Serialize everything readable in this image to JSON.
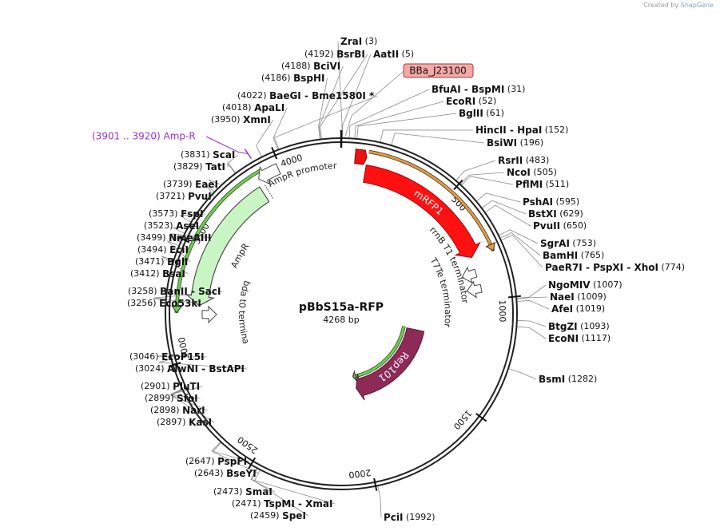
{
  "credit": {
    "prefix": "Created by",
    "brand": "SnapGene"
  },
  "plasmid": {
    "name": "pBbS15a-RFP",
    "length_label": "4268 bp",
    "length": 4268
  },
  "ticks": [
    {
      "bp": 500,
      "label": "500"
    },
    {
      "bp": 1000,
      "label": "1000"
    },
    {
      "bp": 1500,
      "label": "1500"
    },
    {
      "bp": 2000,
      "label": "2000"
    },
    {
      "bp": 2500,
      "label": "2500"
    },
    {
      "bp": 3000,
      "label": "3000"
    },
    {
      "bp": 3500,
      "label": "3500"
    },
    {
      "bp": 4000,
      "label": "4000"
    }
  ],
  "enzymes": [
    {
      "id": "zrai",
      "bp": 3,
      "names": [
        "ZraI"
      ],
      "pos": "(3)",
      "lx": 426,
      "ly": 52,
      "side": "r"
    },
    {
      "id": "aatii",
      "bp": 5,
      "names": [
        "AatII"
      ],
      "pos": "(5)",
      "lx": 467,
      "ly": 68,
      "side": "r"
    },
    {
      "id": "bfuai",
      "bp": 31,
      "names": [
        "BfuAI",
        "BspMI"
      ],
      "pos": "(31)",
      "lx": 540,
      "ly": 112,
      "side": "r"
    },
    {
      "id": "ecori",
      "bp": 52,
      "names": [
        "EcoRI"
      ],
      "pos": "(52)",
      "lx": 558,
      "ly": 127,
      "side": "r"
    },
    {
      "id": "bglii",
      "bp": 61,
      "names": [
        "BglII"
      ],
      "pos": "(61)",
      "lx": 574,
      "ly": 142,
      "side": "r"
    },
    {
      "id": "hincii",
      "bp": 152,
      "names": [
        "HincII",
        "HpaI"
      ],
      "pos": "(152)",
      "lx": 595,
      "ly": 163,
      "side": "r"
    },
    {
      "id": "bsiwi",
      "bp": 196,
      "names": [
        "BsiWI"
      ],
      "pos": "(196)",
      "lx": 609,
      "ly": 179,
      "side": "r"
    },
    {
      "id": "rsrii",
      "bp": 483,
      "names": [
        "RsrII"
      ],
      "pos": "(483)",
      "lx": 623,
      "ly": 201,
      "side": "r"
    },
    {
      "id": "ncoi",
      "bp": 505,
      "names": [
        "NcoI"
      ],
      "pos": "(505)",
      "lx": 634,
      "ly": 216,
      "side": "r"
    },
    {
      "id": "pflmi",
      "bp": 511,
      "names": [
        "PflMI"
      ],
      "pos": "(511)",
      "lx": 645,
      "ly": 231,
      "side": "r"
    },
    {
      "id": "pshai",
      "bp": 595,
      "names": [
        "PshAI"
      ],
      "pos": "(595)",
      "lx": 654,
      "ly": 253,
      "side": "r"
    },
    {
      "id": "bstxi",
      "bp": 629,
      "names": [
        "BstXI"
      ],
      "pos": "(629)",
      "lx": 661,
      "ly": 268,
      "side": "r"
    },
    {
      "id": "pvuii",
      "bp": 650,
      "names": [
        "PvuII"
      ],
      "pos": "(650)",
      "lx": 667,
      "ly": 283,
      "side": "r"
    },
    {
      "id": "sgrai",
      "bp": 753,
      "names": [
        "SgrAI"
      ],
      "pos": "(753)",
      "lx": 676,
      "ly": 305,
      "side": "r"
    },
    {
      "id": "bamhi",
      "bp": 765,
      "names": [
        "BamHI"
      ],
      "pos": "(765)",
      "lx": 679,
      "ly": 320,
      "side": "r"
    },
    {
      "id": "paer7i",
      "bp": 774,
      "names": [
        "PaeR7I",
        "PspXI",
        "XhoI"
      ],
      "pos": "(774)",
      "lx": 682,
      "ly": 335,
      "side": "r"
    },
    {
      "id": "ngomiv",
      "bp": 1007,
      "names": [
        "NgoMIV"
      ],
      "pos": "(1007)",
      "lx": 686,
      "ly": 357,
      "side": "r"
    },
    {
      "id": "naei",
      "bp": 1009,
      "names": [
        "NaeI"
      ],
      "pos": "(1009)",
      "lx": 688,
      "ly": 372,
      "side": "r"
    },
    {
      "id": "afei",
      "bp": 1019,
      "names": [
        "AfeI"
      ],
      "pos": "(1019)",
      "lx": 690,
      "ly": 387,
      "side": "r"
    },
    {
      "id": "btgzi",
      "bp": 1093,
      "names": [
        "BtgZI"
      ],
      "pos": "(1093)",
      "lx": 686,
      "ly": 409,
      "side": "r"
    },
    {
      "id": "econi",
      "bp": 1117,
      "names": [
        "EcoNI"
      ],
      "pos": "(1117)",
      "lx": 686,
      "ly": 424,
      "side": "r"
    },
    {
      "id": "bsmi",
      "bp": 1282,
      "names": [
        "BsmI"
      ],
      "pos": "(1282)",
      "lx": 674,
      "ly": 475,
      "side": "r"
    },
    {
      "id": "pcii",
      "bp": 1992,
      "names": [
        "PciI"
      ],
      "pos": "(1992)",
      "lx": 480,
      "ly": 648,
      "side": "r"
    },
    {
      "id": "spei",
      "bp": 2459,
      "names": [
        "SpeI"
      ],
      "pos": "(2459)",
      "lx": 313,
      "ly": 646,
      "side": "l"
    },
    {
      "id": "tspmi",
      "bp": 2471,
      "names": [
        "TspMI",
        "XmaI"
      ],
      "pos": "(2471)",
      "lx": 290,
      "ly": 631,
      "side": "l"
    },
    {
      "id": "smai",
      "bp": 2473,
      "names": [
        "SmaI"
      ],
      "pos": "(2473)",
      "lx": 267,
      "ly": 616,
      "side": "l"
    },
    {
      "id": "bseyi",
      "bp": 2643,
      "names": [
        "BseYI"
      ],
      "pos": "(2643)",
      "lx": 243,
      "ly": 593,
      "side": "l"
    },
    {
      "id": "pspfi",
      "bp": 2647,
      "names": [
        "PspFI"
      ],
      "pos": "(2647)",
      "lx": 232,
      "ly": 578,
      "side": "l"
    },
    {
      "id": "kasi",
      "bp": 2897,
      "names": [
        "KasI"
      ],
      "pos": "(2897)",
      "lx": 196,
      "ly": 529,
      "side": "l"
    },
    {
      "id": "nari",
      "bp": 2898,
      "names": [
        "NarI"
      ],
      "pos": "(2898)",
      "lx": 188,
      "ly": 514,
      "side": "l"
    },
    {
      "id": "sfoi",
      "bp": 2899,
      "names": [
        "SfoI"
      ],
      "pos": "(2899)",
      "lx": 181,
      "ly": 499,
      "side": "l"
    },
    {
      "id": "pluti",
      "bp": 2901,
      "names": [
        "PluTI"
      ],
      "pos": "(2901)",
      "lx": 176,
      "ly": 484,
      "side": "l"
    },
    {
      "id": "alwni",
      "bp": 3024,
      "names": [
        "AlwNI",
        "BstAPI"
      ],
      "pos": "(3024)",
      "lx": 169,
      "ly": 462,
      "side": "l"
    },
    {
      "id": "ecop15i",
      "bp": 3046,
      "names": [
        "EcoP15I"
      ],
      "pos": "(3046)",
      "lx": 162,
      "ly": 447,
      "side": "l"
    },
    {
      "id": "eco53ki",
      "bp": 3256,
      "names": [
        "Eco53kI"
      ],
      "pos": "(3256)",
      "lx": 159,
      "ly": 380,
      "side": "l"
    },
    {
      "id": "banii",
      "bp": 3258,
      "names": [
        "BanII",
        "SacI"
      ],
      "pos": "(3258)",
      "lx": 160,
      "ly": 365,
      "side": "l"
    },
    {
      "id": "bsai",
      "bp": 3412,
      "names": [
        "BsaI"
      ],
      "pos": "(3412)",
      "lx": 163,
      "ly": 343,
      "side": "l"
    },
    {
      "id": "bgli",
      "bp": 3471,
      "names": [
        "BglI"
      ],
      "pos": "(3471)",
      "lx": 169,
      "ly": 328,
      "side": "l"
    },
    {
      "id": "ecii",
      "bp": 3494,
      "names": [
        "EciI"
      ],
      "pos": "(3494)",
      "lx": 172,
      "ly": 313,
      "side": "l"
    },
    {
      "id": "nmeaiii",
      "bp": 3499,
      "names": [
        "NmeAIII"
      ],
      "pos": "(3499)",
      "lx": 171,
      "ly": 298,
      "side": "l"
    },
    {
      "id": "asei",
      "bp": 3523,
      "names": [
        "AseI"
      ],
      "pos": "(3523)",
      "lx": 180,
      "ly": 283,
      "side": "l"
    },
    {
      "id": "fspi",
      "bp": 3573,
      "names": [
        "FspI"
      ],
      "pos": "(3573)",
      "lx": 186,
      "ly": 268,
      "side": "l"
    },
    {
      "id": "pvui",
      "bp": 3721,
      "names": [
        "PvuI"
      ],
      "pos": "(3721)",
      "lx": 195,
      "ly": 246,
      "side": "l"
    },
    {
      "id": "eaei",
      "bp": 3739,
      "names": [
        "EaeI"
      ],
      "pos": "(3739)",
      "lx": 204,
      "ly": 231,
      "side": "l"
    },
    {
      "id": "tati",
      "bp": 3829,
      "names": [
        "TatI"
      ],
      "pos": "(3829)",
      "lx": 217,
      "ly": 209,
      "side": "l"
    },
    {
      "id": "scai",
      "bp": 3831,
      "names": [
        "ScaI"
      ],
      "pos": "(3831)",
      "lx": 226,
      "ly": 194,
      "side": "l"
    },
    {
      "id": "xmni",
      "bp": 3950,
      "names": [
        "XmnI"
      ],
      "pos": "(3950)",
      "lx": 264,
      "ly": 150,
      "side": "l"
    },
    {
      "id": "apali",
      "bp": 4018,
      "names": [
        "ApaLI"
      ],
      "pos": "(4018)",
      "lx": 278,
      "ly": 135,
      "side": "l"
    },
    {
      "id": "baegi",
      "bp": 4022,
      "names": [
        "BaeGI",
        "Bme1580I *"
      ],
      "pos": "(4022)",
      "lx": 297,
      "ly": 120,
      "side": "l"
    },
    {
      "id": "bsphi",
      "bp": 4186,
      "names": [
        "BspHI"
      ],
      "pos": "(4186)",
      "lx": 327,
      "ly": 98,
      "side": "l"
    },
    {
      "id": "bcivi",
      "bp": 4188,
      "names": [
        "BciVI"
      ],
      "pos": "(4188)",
      "lx": 352,
      "ly": 83,
      "side": "l"
    },
    {
      "id": "bsrbi",
      "bp": 4192,
      "names": [
        "BsrBI"
      ],
      "pos": "(4192)",
      "lx": 381,
      "ly": 68,
      "side": "l"
    }
  ],
  "promoter_label": {
    "text": "BBa_J23100",
    "bp": 15,
    "fill": "#f4a9a6",
    "stroke": "#b03a3a"
  },
  "region": {
    "label": "(3901 .. 3920)  Amp-R",
    "bp": 3910,
    "color": "#9b30d0"
  },
  "features": [
    {
      "id": "mrfp1",
      "label": "mRFP1",
      "type": "cds",
      "start": 113,
      "end": 790,
      "r": 178,
      "w": 22,
      "dir": 1,
      "fill": "#ff1111",
      "stroke": "#b00000",
      "text": "#ffffff"
    },
    {
      "id": "rep101",
      "label": "Rep101",
      "type": "cds",
      "start": 1210,
      "end": 2000,
      "r": 95,
      "w": 22,
      "dir": 1,
      "fill": "#8e2a58",
      "stroke": "#5c1538",
      "text": "#ffffff"
    },
    {
      "id": "ampr",
      "label": "AmpR",
      "type": "cds",
      "start": 3240,
      "end": 3880,
      "r": 178,
      "w": 22,
      "dir": 1,
      "fill": "#c8f5c3",
      "stroke": "#333333",
      "text": "#222222"
    },
    {
      "id": "small_red",
      "label": "",
      "type": "box",
      "start": 60,
      "end": 100,
      "r": 198,
      "w": 18,
      "fill": "#ee1111",
      "stroke": "#990000"
    },
    {
      "id": "ampr_prom",
      "label": "AmpR promoter",
      "type": "promoter",
      "start": 3895,
      "end": 3990,
      "r": 198,
      "w": 14,
      "fill": "#ffffff",
      "stroke": "#444444"
    },
    {
      "id": "rrnb",
      "label": "rrnB T1 terminator",
      "type": "term",
      "start": 835,
      "end": 900,
      "r": 166,
      "fill": "#ffffff",
      "stroke": "#444444"
    },
    {
      "id": "t7te",
      "label": "T7Te terminator",
      "type": "term",
      "start": 920,
      "end": 970,
      "r": 168,
      "fill": "#ffffff",
      "stroke": "#444444"
    },
    {
      "id": "lambda",
      "label": "lambda t0 terminator",
      "type": "term",
      "start": 3165,
      "end": 3230,
      "r": 166,
      "fill": "#ffffff",
      "stroke": "#444444"
    }
  ],
  "strands": [
    {
      "id": "orange",
      "start": 115,
      "end": 800,
      "r": 206,
      "color": "#e69a3a",
      "dir": 1
    },
    {
      "id": "green_ampr",
      "start": 3205,
      "end": 3925,
      "r": 206,
      "color": "#6bd24a",
      "dir": -1
    },
    {
      "id": "green_rep",
      "start": 1200,
      "end": 2010,
      "r": 80,
      "color": "#6bd24a",
      "dir": 1
    }
  ],
  "labels": {
    "ampr_promoter": "AmpR promoter",
    "ampr": "AmpR",
    "rrnb": "rrnB T1 terminator",
    "t7te": "T7Te terminator",
    "lambda": "lambda t0 terminator"
  }
}
